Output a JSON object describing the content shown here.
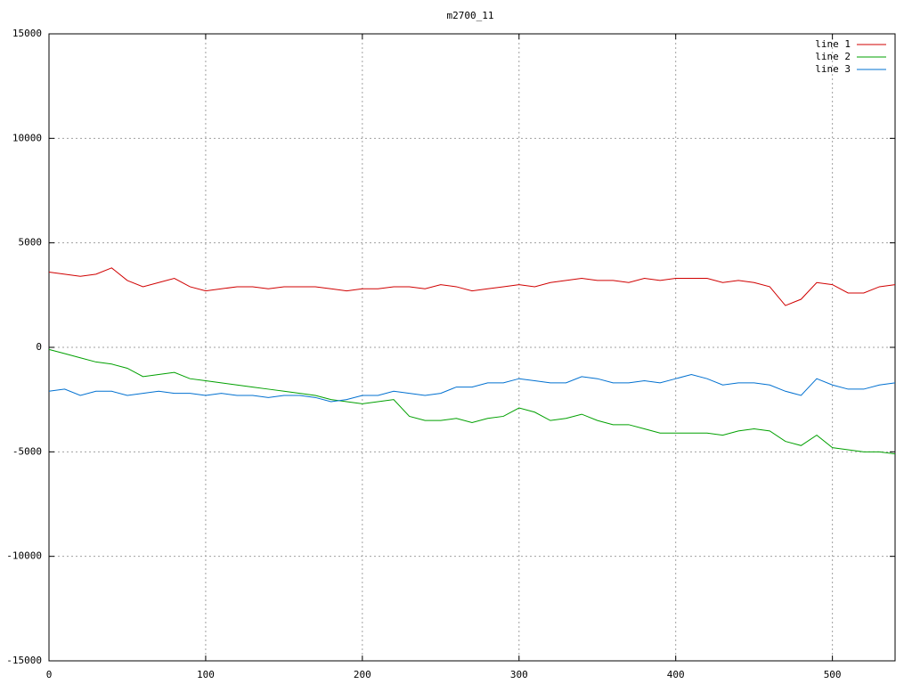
{
  "chart_data": {
    "type": "line",
    "title": "m2700_11",
    "x": [
      0,
      10,
      20,
      30,
      40,
      50,
      60,
      70,
      80,
      90,
      100,
      110,
      120,
      130,
      140,
      150,
      160,
      170,
      180,
      190,
      200,
      210,
      220,
      230,
      240,
      250,
      260,
      270,
      280,
      290,
      300,
      310,
      320,
      330,
      340,
      350,
      360,
      370,
      380,
      390,
      400,
      410,
      420,
      430,
      440,
      450,
      460,
      470,
      480,
      490,
      500,
      510,
      520,
      530,
      540
    ],
    "series": [
      {
        "name": "line 1",
        "color": "#d00000",
        "values": [
          3600,
          3500,
          3400,
          3500,
          3800,
          3200,
          2900,
          3100,
          3300,
          2900,
          2700,
          2800,
          2900,
          2900,
          2800,
          2900,
          2900,
          2900,
          2800,
          2700,
          2800,
          2800,
          2900,
          2900,
          2800,
          3000,
          2900,
          2700,
          2800,
          2900,
          3000,
          2900,
          3100,
          3200,
          3300,
          3200,
          3200,
          3100,
          3300,
          3200,
          3300,
          3300,
          3300,
          3100,
          3200,
          3100,
          2900,
          2000,
          2300,
          3100,
          3000,
          2600,
          2600,
          2900,
          3000
        ]
      },
      {
        "name": "line 2",
        "color": "#00a000",
        "values": [
          -100,
          -300,
          -500,
          -700,
          -800,
          -1000,
          -1400,
          -1300,
          -1200,
          -1500,
          -1600,
          -1700,
          -1800,
          -1900,
          -2000,
          -2100,
          -2200,
          -2300,
          -2500,
          -2600,
          -2700,
          -2600,
          -2500,
          -3300,
          -3500,
          -3500,
          -3400,
          -3600,
          -3400,
          -3300,
          -2900,
          -3100,
          -3500,
          -3400,
          -3200,
          -3500,
          -3700,
          -3700,
          -3900,
          -4100,
          -4100,
          -4100,
          -4100,
          -4200,
          -4000,
          -3900,
          -4000,
          -4500,
          -4700,
          -4200,
          -4800,
          -4900,
          -5000,
          -5000,
          -5100
        ]
      },
      {
        "name": "line 3",
        "color": "#0070d0",
        "values": [
          -2100,
          -2000,
          -2300,
          -2100,
          -2100,
          -2300,
          -2200,
          -2100,
          -2200,
          -2200,
          -2300,
          -2200,
          -2300,
          -2300,
          -2400,
          -2300,
          -2300,
          -2400,
          -2600,
          -2500,
          -2300,
          -2300,
          -2100,
          -2200,
          -2300,
          -2200,
          -1900,
          -1900,
          -1700,
          -1700,
          -1500,
          -1600,
          -1700,
          -1700,
          -1400,
          -1500,
          -1700,
          -1700,
          -1600,
          -1700,
          -1500,
          -1300,
          -1500,
          -1800,
          -1700,
          -1700,
          -1800,
          -2100,
          -2300,
          -1500,
          -1800,
          -2000,
          -2000,
          -1800,
          -1700
        ]
      }
    ],
    "xlim": [
      0,
      540
    ],
    "ylim": [
      -15000,
      15000
    ],
    "xticks": [
      0,
      100,
      200,
      300,
      400,
      500
    ],
    "yticks": [
      -15000,
      -10000,
      -5000,
      0,
      5000,
      10000,
      15000
    ],
    "grid": true,
    "legend": "top-right"
  }
}
